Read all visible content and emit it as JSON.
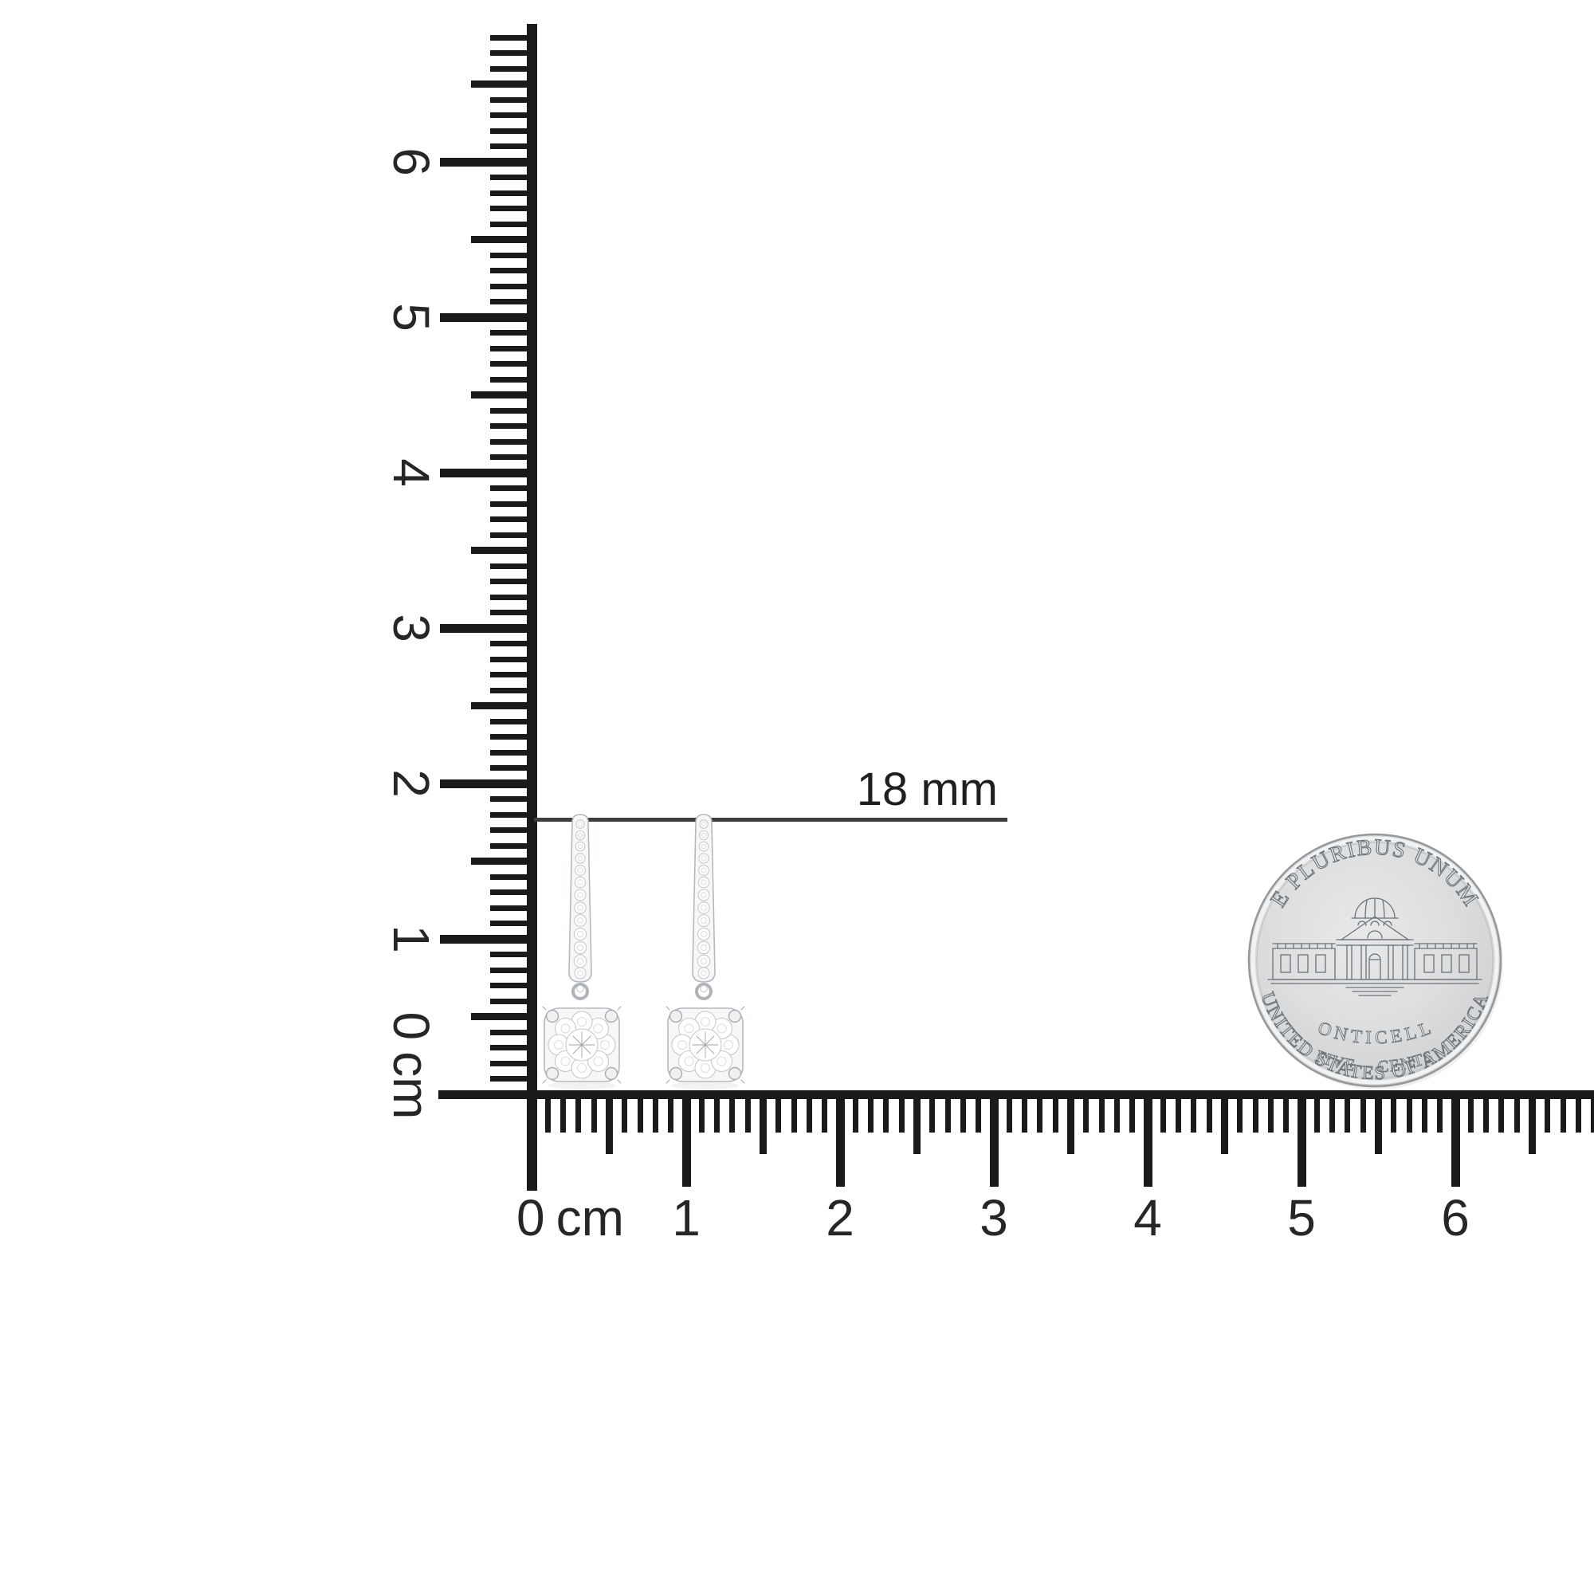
{
  "page": {
    "background": "#ffffff"
  },
  "annotation": {
    "label": "18 mm"
  },
  "vertical_ruler": {
    "labels": [
      "6",
      "5",
      "4",
      "3",
      "2",
      "1"
    ],
    "zero_digit": "0",
    "unit": "cm"
  },
  "horizontal_ruler": {
    "labels": [
      "1",
      "2",
      "3",
      "4",
      "5",
      "6"
    ],
    "zero_digit": "0",
    "unit": "cm"
  },
  "coin": {
    "top_legend": "E PLURIBUS UNUM",
    "building_label": "MONTICELLO",
    "denomination": "FIVE CENTS",
    "bottom_legend": "UNITED STATES OF AMERICA"
  },
  "colors": {
    "ruler_ink": "#1a1a1a",
    "label_ink": "#262626",
    "annotation_line": "#3e3e3e",
    "coin_face": "#dcdee0",
    "coin_engraving": "#6f7478",
    "earring_metal_outline": "#b5b9bd"
  }
}
